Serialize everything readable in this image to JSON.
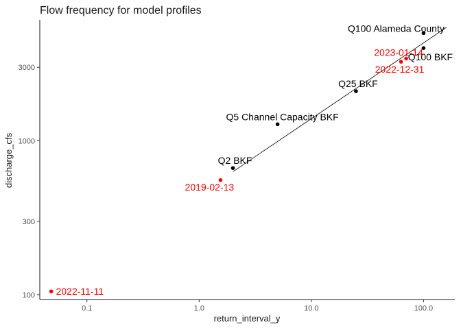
{
  "chart_data": {
    "type": "scatter",
    "title": "Flow frequency for model profiles",
    "xlabel": "return_interval_y",
    "ylabel": "discharge_cfs",
    "x_scale": "log10",
    "y_scale": "log10",
    "xlim": [
      0.038,
      190
    ],
    "ylim": [
      93,
      6100
    ],
    "x_ticks": [
      {
        "value": 0.1,
        "label": "0.1"
      },
      {
        "value": 1,
        "label": "1.0"
      },
      {
        "value": 10,
        "label": "10.0"
      },
      {
        "value": 100,
        "label": "100.0"
      }
    ],
    "y_ticks": [
      {
        "value": 100,
        "label": "100"
      },
      {
        "value": 300,
        "label": "300"
      },
      {
        "value": 1000,
        "label": "1000"
      },
      {
        "value": 3000,
        "label": "3000"
      }
    ],
    "grid": false,
    "legend": "none",
    "colors": {
      "profile": "#000000",
      "observed": "#ff0000"
    },
    "series": [
      {
        "points": [
          {
            "x": 2,
            "y": 665,
            "label": "Q2 BKF"
          },
          {
            "x": 5,
            "y": 1280,
            "label": "Q5 Channel Capacity BKF"
          },
          {
            "x": 25,
            "y": 2100,
            "label": "Q25 BKF"
          },
          {
            "x": 100,
            "y": 4000,
            "label": "Q100 BKF"
          },
          {
            "x": 100,
            "y": 5000,
            "label": "Q100 Alameda County"
          }
        ]
      },
      {
        "points": [
          {
            "x": 0.048,
            "y": 105,
            "label": "2022-11-11"
          },
          {
            "x": 1.55,
            "y": 555,
            "label": "2019-02-13"
          },
          {
            "x": 63,
            "y": 3260,
            "label": "2022-12-31"
          },
          {
            "x": 70,
            "y": 3420,
            "label": "2023-01-14"
          }
        ]
      }
    ],
    "fit_line": {
      "x": [
        2,
        160
      ],
      "y": [
        630,
        5450
      ]
    }
  }
}
